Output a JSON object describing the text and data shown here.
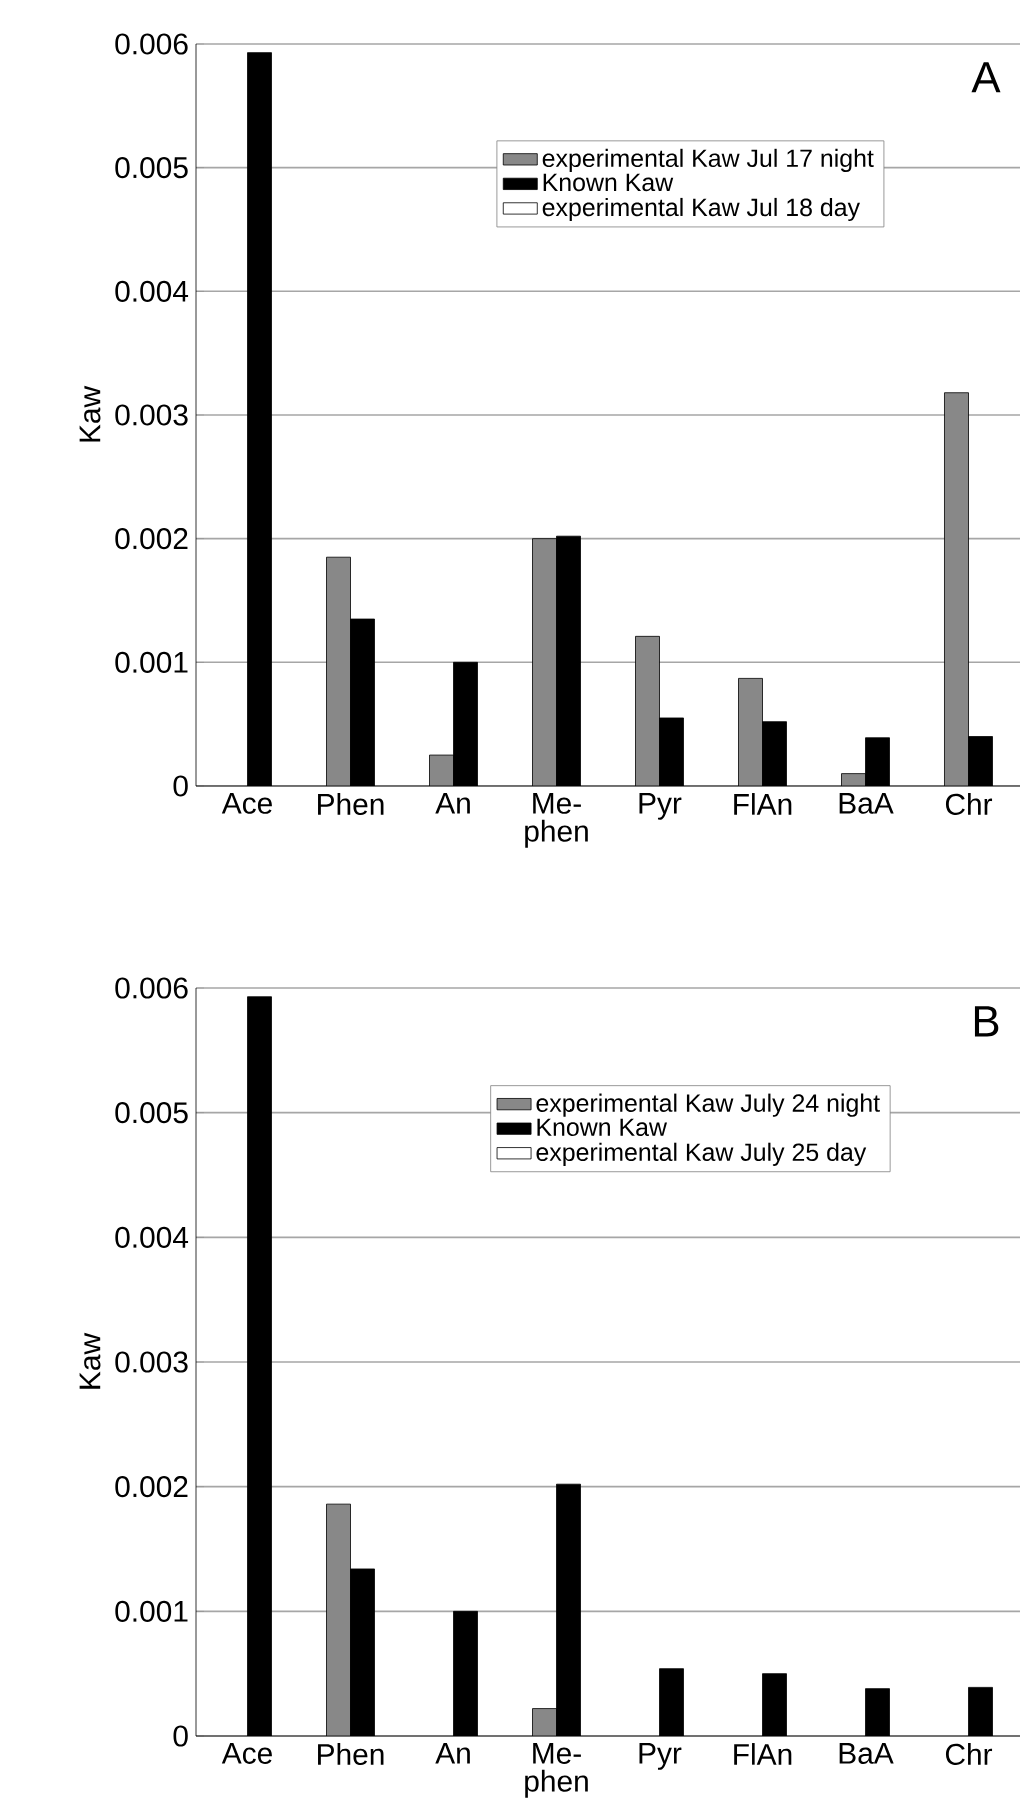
{
  "chart_data": [
    {
      "type": "bar",
      "ylabel": "Kaw",
      "categories": [
        "Ace",
        "Phen",
        "An",
        "Me- phen",
        "Pyr",
        "FlAn",
        "BaA",
        "Chr"
      ],
      "series": [
        {
          "name": "experimental Kaw Jul 17 night",
          "color": "#888888",
          "values": [
            null,
            0.00185,
            0.00025,
            0.002,
            0.00121,
            0.00087,
            0.0001,
            0.00318
          ]
        },
        {
          "name": "Known Kaw",
          "color": "#000000",
          "values": [
            0.00593,
            0.00135,
            0.001,
            0.00202,
            0.00055,
            0.00052,
            0.00039,
            0.0004
          ]
        },
        {
          "name": "experimental Kaw Jul 18 day",
          "values": [
            null,
            null,
            null,
            null,
            null,
            null,
            null,
            null
          ]
        }
      ],
      "ylim": [
        0,
        0.006
      ],
      "yticks": [
        0,
        0.001,
        0.002,
        0.003,
        0.004,
        0.005,
        0.006
      ],
      "grid": "y",
      "legend": "top",
      "annotations": [
        "A"
      ]
    },
    {
      "type": "bar",
      "ylabel": "Kaw",
      "categories": [
        "Ace",
        "Phen",
        "An",
        "Me- phen",
        "Pyr",
        "FlAn",
        "BaA",
        "Chr"
      ],
      "series": [
        {
          "name": "experimental Kaw July 24 night",
          "color": "#888888",
          "values": [
            null,
            0.00186,
            null,
            0.00022,
            null,
            null,
            null,
            null
          ]
        },
        {
          "name": "Known Kaw",
          "color": "#000000",
          "values": [
            0.00593,
            0.00134,
            0.001,
            0.00202,
            0.00054,
            0.0005,
            0.00038,
            0.00039
          ]
        },
        {
          "name": "experimental Kaw  July 25 day",
          "values": [
            null,
            null,
            null,
            null,
            null,
            null,
            null,
            null
          ]
        }
      ],
      "ylim": [
        0,
        0.006
      ],
      "yticks": [
        0,
        0.001,
        0.002,
        0.003,
        0.004,
        0.005,
        0.006
      ],
      "grid": "y",
      "legend": "top",
      "annotations": [
        "B"
      ]
    }
  ]
}
